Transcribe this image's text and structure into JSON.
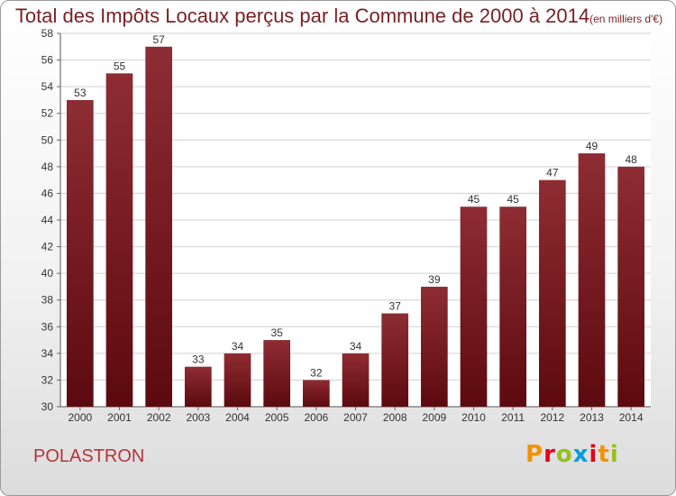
{
  "header": {
    "title": "Total des Impôts Locaux perçus par la Commune de 2000 à 2014",
    "unit": "(en milliers d'€)"
  },
  "footer": {
    "commune": "POLASTRON",
    "logo_text": "Proxiti",
    "logo_colors": [
      "#f39200",
      "#e2001a",
      "#95c11f",
      "#009fe3",
      "#e2001a",
      "#f39200",
      "#95c11f"
    ]
  },
  "colors": {
    "bar_top": "#8e2c33",
    "bar_bottom": "#5c0a0f",
    "title": "#7a1f23",
    "commune": "#b5343a"
  },
  "chart_data": {
    "type": "bar",
    "title": "Total des Impôts Locaux perçus par la Commune de 2000 à 2014",
    "categories": [
      "2000",
      "2001",
      "2002",
      "2003",
      "2004",
      "2005",
      "2006",
      "2007",
      "2008",
      "2009",
      "2010",
      "2011",
      "2012",
      "2013",
      "2014"
    ],
    "values": [
      53,
      55,
      57,
      33,
      34,
      35,
      32,
      34,
      37,
      39,
      45,
      45,
      47,
      49,
      48
    ],
    "ylim": [
      30,
      58
    ],
    "yticks": [
      30,
      32,
      34,
      36,
      38,
      40,
      42,
      44,
      46,
      48,
      50,
      52,
      54,
      56,
      58
    ],
    "grid": true,
    "data_labels": true
  }
}
